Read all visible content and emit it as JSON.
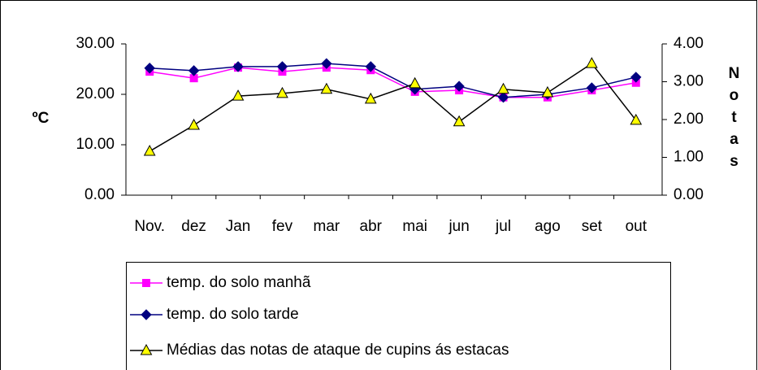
{
  "chart_data": {
    "type": "line",
    "categories": [
      "Nov.",
      "dez",
      "Jan",
      "fev",
      "mar",
      "abr",
      "mai",
      "jun",
      "jul",
      "ago",
      "set",
      "out"
    ],
    "ylabel": "ºC",
    "y2label": "Notas",
    "ylim": [
      0,
      30
    ],
    "yticks": [
      {
        "value": 0,
        "label": "0.00"
      },
      {
        "value": 10,
        "label": "10.00"
      },
      {
        "value": 20,
        "label": "20.00"
      },
      {
        "value": 30,
        "label": "30.00"
      }
    ],
    "y2lim": [
      0,
      4
    ],
    "y2ticks": [
      {
        "value": 0,
        "label": "0.00"
      },
      {
        "value": 1,
        "label": "1.00"
      },
      {
        "value": 2,
        "label": "2.00"
      },
      {
        "value": 3,
        "label": "3.00"
      },
      {
        "value": 4,
        "label": "4.00"
      }
    ],
    "legend": "bottom",
    "series": [
      {
        "name": "temp. do solo manhã",
        "color": "#ff00ff",
        "marker": "square",
        "marker_color": "#ff00ff",
        "values": [
          24.5,
          23.2,
          25.3,
          24.5,
          25.3,
          24.8,
          20.5,
          20.8,
          19.4,
          19.4,
          20.8,
          22.3
        ]
      },
      {
        "name": "temp. do solo tarde",
        "color": "#000080",
        "marker": "diamond",
        "marker_color": "#000080",
        "values": [
          25.2,
          24.7,
          25.5,
          25.5,
          26.1,
          25.5,
          21.0,
          21.6,
          19.4,
          20.0,
          21.3,
          23.4
        ]
      },
      {
        "name": "Médias das notas de ataque de cupins ás estacas",
        "color": "#000000",
        "marker": "triangle",
        "marker_color": "#ffff00",
        "axis": "y2",
        "values": [
          1.16,
          1.85,
          2.62,
          2.69,
          2.8,
          2.54,
          2.95,
          1.94,
          2.8,
          2.71,
          3.48,
          1.98
        ]
      }
    ]
  }
}
